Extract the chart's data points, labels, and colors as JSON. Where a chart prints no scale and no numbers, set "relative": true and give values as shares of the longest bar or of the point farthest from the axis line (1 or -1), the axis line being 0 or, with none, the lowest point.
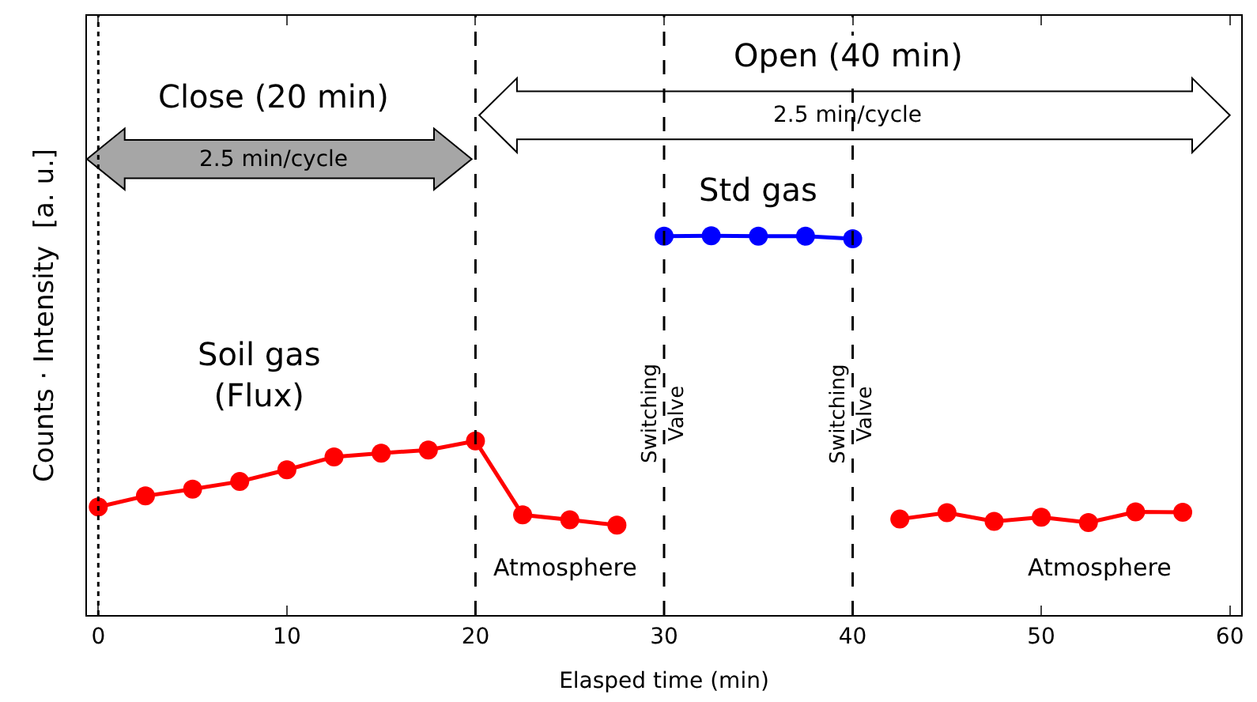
{
  "chart_data": {
    "type": "line",
    "relative": true,
    "xlabel": "Elasped time (min)",
    "ylabel": "Counts · Intensity  [a. u.]",
    "xlim": [
      -0.6,
      60.6
    ],
    "xticks": [
      0,
      10,
      20,
      30,
      40,
      50,
      60
    ],
    "grid": false,
    "marker": "circle",
    "line_style": "solid",
    "series": [
      {
        "color": "#ff0000",
        "x": [
          0,
          2.5,
          5,
          7.5,
          10,
          12.5,
          15,
          17.5,
          20,
          22.5,
          25,
          27.5
        ],
        "values": [
          0.285,
          0.314,
          0.332,
          0.352,
          0.383,
          0.417,
          0.427,
          0.435,
          0.459,
          0.264,
          0.251,
          0.237
        ]
      },
      {
        "color": "#0000ff",
        "x": [
          30,
          32.5,
          35,
          37.5,
          40
        ],
        "values": [
          0.999,
          1.0,
          0.999,
          0.999,
          0.992
        ]
      },
      {
        "color": "#ff0000",
        "x": [
          42.5,
          45,
          47.5,
          50,
          52.5,
          55,
          57.5
        ],
        "values": [
          0.253,
          0.27,
          0.247,
          0.258,
          0.244,
          0.272,
          0.271
        ]
      }
    ],
    "ref_lines": [
      {
        "axis": "x",
        "value": 0,
        "line_style": "dotted",
        "color": "#000000"
      },
      {
        "axis": "x",
        "value": 20,
        "line_style": "dashed",
        "color": "#000000"
      },
      {
        "axis": "x",
        "value": 30,
        "line_style": "dashed",
        "color": "#000000",
        "label": "Switching\nValve"
      },
      {
        "axis": "x",
        "value": 40,
        "line_style": "dashed",
        "color": "#000000",
        "label": "Switching\nValve"
      }
    ],
    "annotations": [
      "Close (20 min)",
      "2.5 min/cycle",
      "Open (40 min)",
      "2.5 min/cycle",
      "Std gas",
      "Soil gas\n(Flux)",
      "Atmosphere",
      "Atmosphere"
    ]
  }
}
